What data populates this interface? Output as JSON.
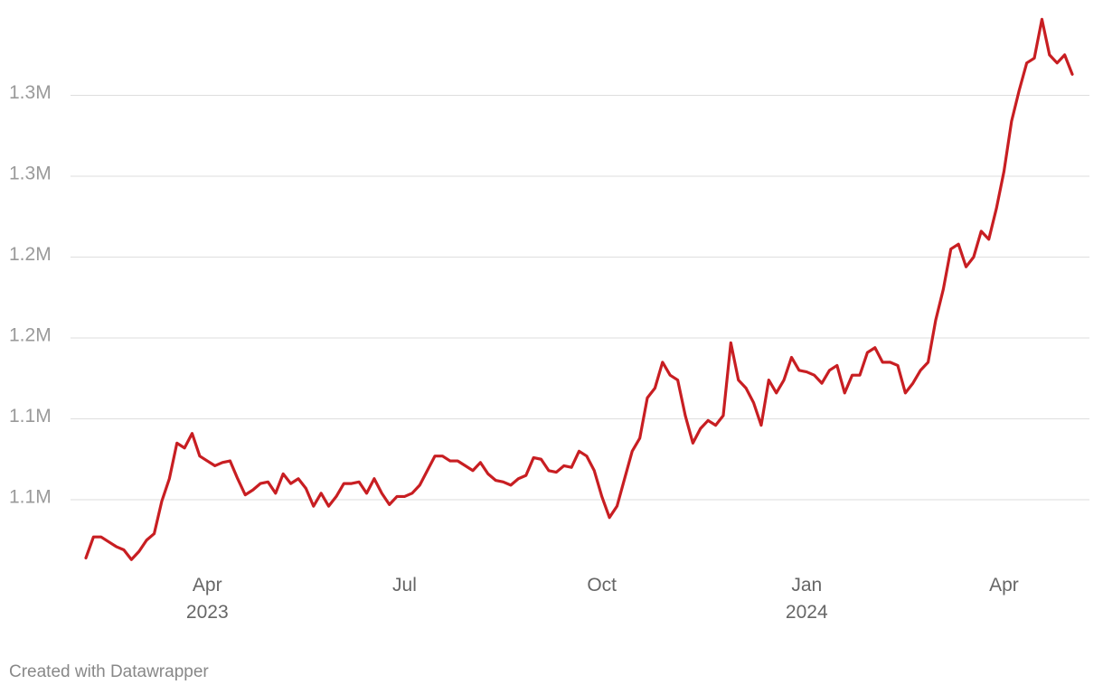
{
  "chart_data": {
    "type": "line",
    "categories": [
      null,
      null,
      null,
      null,
      null,
      null,
      null,
      null,
      null,
      null,
      null,
      null,
      null,
      null,
      null,
      null,
      "Apr 2023",
      null,
      null,
      null,
      null,
      null,
      null,
      null,
      null,
      null,
      null,
      null,
      null,
      null,
      null,
      null,
      null,
      null,
      null,
      null,
      null,
      null,
      null,
      null,
      null,
      null,
      "Jul",
      null,
      null,
      null,
      null,
      null,
      null,
      null,
      null,
      null,
      null,
      null,
      null,
      null,
      null,
      null,
      null,
      null,
      null,
      null,
      null,
      null,
      null,
      null,
      null,
      null,
      "Oct",
      null,
      null,
      null,
      null,
      null,
      null,
      null,
      null,
      null,
      null,
      null,
      null,
      null,
      null,
      null,
      null,
      null,
      null,
      null,
      null,
      null,
      null,
      null,
      null,
      null,
      null,
      "Jan 2024",
      null,
      null,
      null,
      null,
      null,
      null,
      null,
      null,
      null,
      null,
      null,
      null,
      null,
      null,
      null,
      null,
      null,
      null,
      null,
      null,
      null,
      null,
      null,
      null,
      null,
      "Apr",
      null,
      null,
      null,
      null,
      null,
      null,
      null,
      null,
      null
    ],
    "values": [
      1014000,
      1027000,
      1027000,
      1024000,
      1021000,
      1019000,
      1013000,
      1018000,
      1025000,
      1029000,
      1049000,
      1063000,
      1085000,
      1082000,
      1091000,
      1077000,
      1074000,
      1071000,
      1073000,
      1074000,
      1063000,
      1053000,
      1056000,
      1060000,
      1061000,
      1054000,
      1066000,
      1060000,
      1063000,
      1057000,
      1046000,
      1054000,
      1046000,
      1052000,
      1060000,
      1060000,
      1061000,
      1054000,
      1063000,
      1054000,
      1047000,
      1052000,
      1052000,
      1054000,
      1059000,
      1068000,
      1077000,
      1077000,
      1074000,
      1074000,
      1071000,
      1068000,
      1073000,
      1066000,
      1062000,
      1061000,
      1059000,
      1063000,
      1065000,
      1076000,
      1075000,
      1068000,
      1067000,
      1071000,
      1070000,
      1080000,
      1077000,
      1068000,
      1052000,
      1039000,
      1046000,
      1063000,
      1080000,
      1088000,
      1113000,
      1119000,
      1135000,
      1127000,
      1124000,
      1102000,
      1085000,
      1094000,
      1099000,
      1096000,
      1102000,
      1147000,
      1124000,
      1119000,
      1110000,
      1096000,
      1124000,
      1116000,
      1124000,
      1138000,
      1130000,
      1129000,
      1127000,
      1122000,
      1130000,
      1133000,
      1116000,
      1127000,
      1127000,
      1141000,
      1144000,
      1135000,
      1135000,
      1133000,
      1116000,
      1122000,
      1130000,
      1135000,
      1161000,
      1180000,
      1205000,
      1208000,
      1194000,
      1200000,
      1216000,
      1211000,
      1230000,
      1253000,
      1284000,
      1303000,
      1320000,
      1323000,
      1347000,
      1325000,
      1320000,
      1325000,
      1313000
    ],
    "color": "#c81e22",
    "ylim": [
      1010000,
      1350000
    ],
    "yticks": [
      {
        "value": 1050000,
        "label": "1.1M"
      },
      {
        "value": 1100000,
        "label": "1.1M"
      },
      {
        "value": 1150000,
        "label": "1.2M"
      },
      {
        "value": 1200000,
        "label": "1.2M"
      },
      {
        "value": 1250000,
        "label": "1.3M"
      },
      {
        "value": 1300000,
        "label": "1.3M"
      }
    ],
    "grid": true,
    "credit": "Created with Datawrapper"
  }
}
